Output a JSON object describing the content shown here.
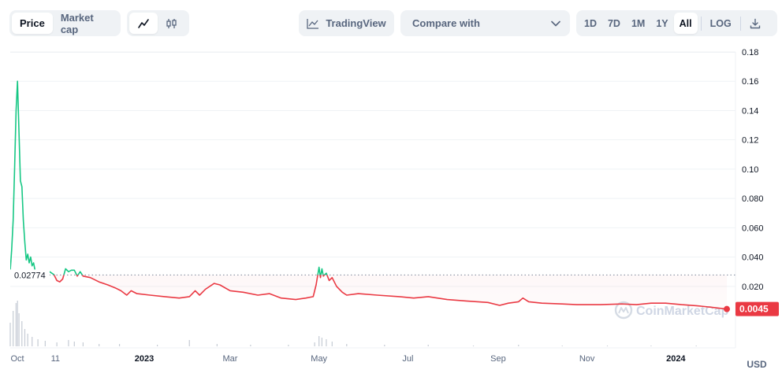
{
  "toolbar": {
    "price_label": "Price",
    "market_cap_label": "Market cap",
    "line_icon": "line-chart-icon",
    "candle_icon": "candlestick-icon",
    "tradingview_label": "TradingView",
    "compare_label": "Compare with",
    "ranges": [
      "1D",
      "7D",
      "1M",
      "1Y",
      "All"
    ],
    "active_range": "All",
    "log_label": "LOG",
    "download_icon": "download-icon"
  },
  "chart_data": {
    "type": "area",
    "ylim": [
      -0.022,
      0.18
    ],
    "y_ticks": [
      "0.18",
      "0.16",
      "0.14",
      "0.12",
      "0.10",
      "0.080",
      "0.060",
      "0.040",
      "0.020"
    ],
    "y_tick_values": [
      0.18,
      0.16,
      0.14,
      0.12,
      0.1,
      0.08,
      0.06,
      0.04,
      0.02
    ],
    "x_ticks": [
      "Oct",
      "11",
      "2023",
      "Mar",
      "May",
      "Jul",
      "Sep",
      "Nov",
      "2024"
    ],
    "x_tick_dates": [
      "2022-10-01",
      "2022-11-01",
      "2023-01-01",
      "2023-03-01",
      "2023-05-01",
      "2023-07-01",
      "2023-09-01",
      "2023-11-01",
      "2024-01-01"
    ],
    "xlim": [
      "2022-10-01",
      "2024-02-05"
    ],
    "currency_label": "USD",
    "reference_price": 0.02774,
    "reference_label": "0.02774",
    "current_price": 0.0045,
    "current_label": "0.0045",
    "grid": true,
    "watermark": "CoinMarketCap",
    "colors": {
      "up": "#16c784",
      "down": "#ea3943",
      "grid": "#eff2f5",
      "axis_text": "#58667e"
    },
    "series": [
      {
        "points": [
          [
            "2022-10-01",
            0.031
          ],
          [
            "2022-10-02",
            0.045
          ],
          [
            "2022-10-03",
            0.065
          ],
          [
            "2022-10-04",
            0.1
          ],
          [
            "2022-10-05",
            0.14
          ],
          [
            "2022-10-06",
            0.16
          ],
          [
            "2022-10-07",
            0.125
          ],
          [
            "2022-10-08",
            0.092
          ],
          [
            "2022-10-09",
            0.088
          ],
          [
            "2022-10-10",
            0.065
          ],
          [
            "2022-10-11",
            0.05
          ],
          [
            "2022-10-12",
            0.038
          ],
          [
            "2022-10-13",
            0.042
          ],
          [
            "2022-10-14",
            0.036
          ],
          [
            "2022-10-15",
            0.04
          ],
          [
            "2022-10-16",
            0.034
          ],
          [
            "2022-10-17",
            0.036
          ],
          [
            "2022-10-18",
            0.031
          ],
          [
            "2022-10-20",
            0.03
          ],
          [
            "2022-10-22",
            0.027
          ],
          [
            "2022-10-25",
            0.025
          ],
          [
            "2022-10-28",
            0.03
          ],
          [
            "2022-10-31",
            0.028
          ],
          [
            "2022-11-02",
            0.024
          ],
          [
            "2022-11-04",
            0.023
          ],
          [
            "2022-11-06",
            0.025
          ],
          [
            "2022-11-08",
            0.032
          ],
          [
            "2022-11-10",
            0.03
          ],
          [
            "2022-11-12",
            0.031
          ],
          [
            "2022-11-14",
            0.031
          ],
          [
            "2022-11-16",
            0.027
          ],
          [
            "2022-11-18",
            0.03
          ],
          [
            "2022-11-20",
            0.027
          ],
          [
            "2022-11-25",
            0.026
          ],
          [
            "2022-12-01",
            0.023
          ],
          [
            "2022-12-07",
            0.021
          ],
          [
            "2022-12-12",
            0.019
          ],
          [
            "2022-12-16",
            0.017
          ],
          [
            "2022-12-20",
            0.014
          ],
          [
            "2022-12-23",
            0.017
          ],
          [
            "2022-12-27",
            0.015
          ],
          [
            "2023-01-05",
            0.014
          ],
          [
            "2023-01-15",
            0.013
          ],
          [
            "2023-01-25",
            0.012
          ],
          [
            "2023-02-01",
            0.013
          ],
          [
            "2023-02-05",
            0.017
          ],
          [
            "2023-02-08",
            0.014
          ],
          [
            "2023-02-12",
            0.018
          ],
          [
            "2023-02-18",
            0.022
          ],
          [
            "2023-02-22",
            0.021
          ],
          [
            "2023-03-01",
            0.017
          ],
          [
            "2023-03-10",
            0.016
          ],
          [
            "2023-03-20",
            0.014
          ],
          [
            "2023-03-28",
            0.015
          ],
          [
            "2023-04-05",
            0.012
          ],
          [
            "2023-04-15",
            0.011
          ],
          [
            "2023-04-22",
            0.012
          ],
          [
            "2023-04-27",
            0.013
          ],
          [
            "2023-04-29",
            0.021
          ],
          [
            "2023-05-01",
            0.033
          ],
          [
            "2023-05-02",
            0.026
          ],
          [
            "2023-05-03",
            0.032
          ],
          [
            "2023-05-04",
            0.027
          ],
          [
            "2023-05-06",
            0.029
          ],
          [
            "2023-05-08",
            0.024
          ],
          [
            "2023-05-10",
            0.026
          ],
          [
            "2023-05-13",
            0.02
          ],
          [
            "2023-05-17",
            0.016
          ],
          [
            "2023-05-20",
            0.014
          ],
          [
            "2023-05-28",
            0.015
          ],
          [
            "2023-06-10",
            0.014
          ],
          [
            "2023-06-25",
            0.013
          ],
          [
            "2023-07-05",
            0.012
          ],
          [
            "2023-07-15",
            0.013
          ],
          [
            "2023-07-28",
            0.011
          ],
          [
            "2023-08-10",
            0.01
          ],
          [
            "2023-08-25",
            0.009
          ],
          [
            "2023-09-02",
            0.007
          ],
          [
            "2023-09-08",
            0.0085
          ],
          [
            "2023-09-15",
            0.0095
          ],
          [
            "2023-09-18",
            0.012
          ],
          [
            "2023-09-22",
            0.0095
          ],
          [
            "2023-10-01",
            0.0085
          ],
          [
            "2023-10-15",
            0.008
          ],
          [
            "2023-10-25",
            0.0075
          ],
          [
            "2023-11-10",
            0.0075
          ],
          [
            "2023-11-25",
            0.008
          ],
          [
            "2023-12-05",
            0.0075
          ],
          [
            "2023-12-15",
            0.0085
          ],
          [
            "2023-12-25",
            0.0085
          ],
          [
            "2024-01-05",
            0.0075
          ],
          [
            "2024-01-15",
            0.0068
          ],
          [
            "2024-01-25",
            0.0058
          ],
          [
            "2024-02-05",
            0.0045
          ]
        ]
      }
    ],
    "volume": [
      [
        "2022-10-01",
        0.3
      ],
      [
        "2022-10-03",
        0.45
      ],
      [
        "2022-10-05",
        0.55
      ],
      [
        "2022-10-06",
        0.58
      ],
      [
        "2022-10-07",
        0.42
      ],
      [
        "2022-10-09",
        0.32
      ],
      [
        "2022-10-11",
        0.22
      ],
      [
        "2022-10-13",
        0.16
      ],
      [
        "2022-10-16",
        0.12
      ],
      [
        "2022-10-20",
        0.09
      ],
      [
        "2022-10-25",
        0.07
      ],
      [
        "2022-11-02",
        0.05
      ],
      [
        "2022-11-10",
        0.08
      ],
      [
        "2022-11-14",
        0.06
      ],
      [
        "2022-11-20",
        0.05
      ],
      [
        "2022-12-01",
        0.03
      ],
      [
        "2022-12-15",
        0.03
      ],
      [
        "2023-01-10",
        0.02
      ],
      [
        "2023-02-01",
        0.08
      ],
      [
        "2023-02-20",
        0.03
      ],
      [
        "2023-03-15",
        0.02
      ],
      [
        "2023-04-10",
        0.02
      ],
      [
        "2023-04-28",
        0.05
      ],
      [
        "2023-05-01",
        0.13
      ],
      [
        "2023-05-03",
        0.11
      ],
      [
        "2023-05-06",
        0.09
      ],
      [
        "2023-05-10",
        0.06
      ],
      [
        "2023-05-20",
        0.03
      ],
      [
        "2023-06-15",
        0.02
      ],
      [
        "2023-07-15",
        0.02
      ],
      [
        "2023-08-15",
        0.01
      ],
      [
        "2023-09-15",
        0.02
      ],
      [
        "2023-10-15",
        0.01
      ],
      [
        "2023-11-15",
        0.01
      ],
      [
        "2023-12-15",
        0.01
      ],
      [
        "2024-01-15",
        0.01
      ]
    ]
  }
}
